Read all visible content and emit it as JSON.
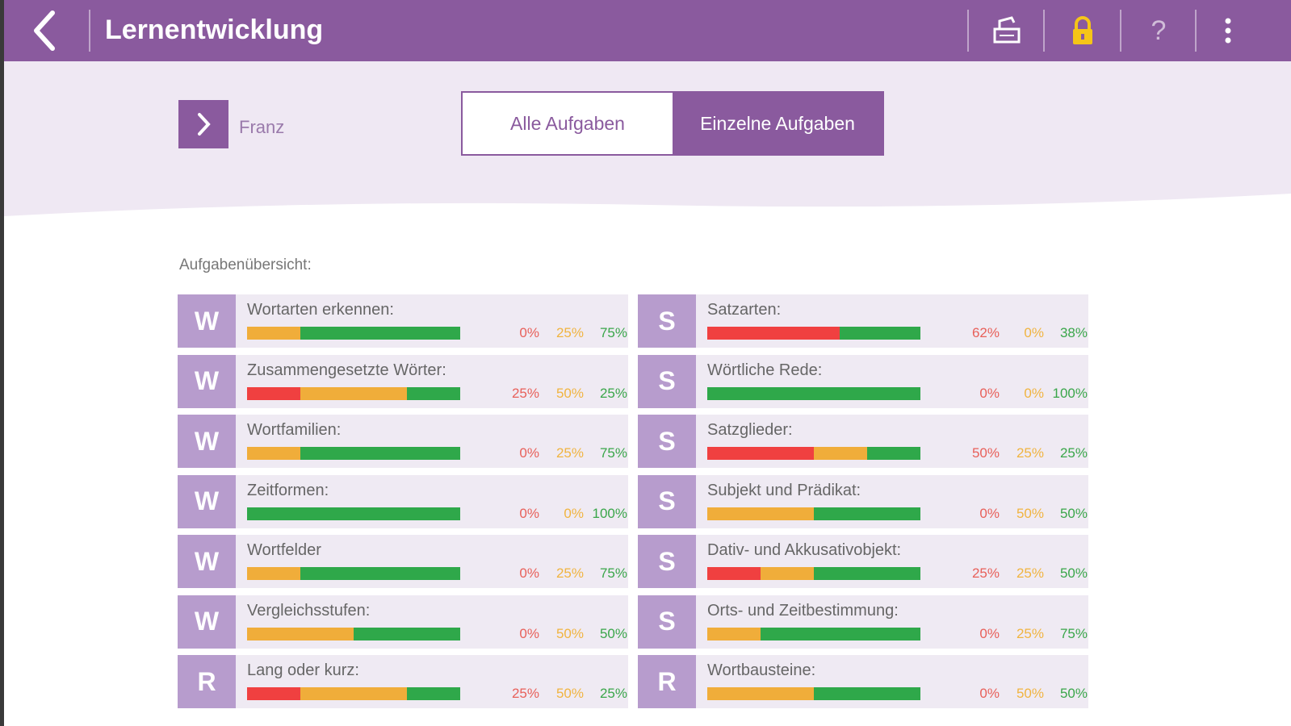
{
  "header": {
    "title": "Lernentwicklung",
    "icons": [
      "back-icon",
      "print-icon",
      "lock-icon",
      "help-icon",
      "more-icon"
    ]
  },
  "student": {
    "name": "Franz"
  },
  "segments": {
    "all": "Alle Aufgaben",
    "single": "Einzelne Aufgaben",
    "selected": "single"
  },
  "overview_label": "Aufgabenübersicht:",
  "colors": {
    "purple": "#8a5a9e",
    "red": "#f04040",
    "orange": "#f0ad3a",
    "green": "#2fa84a",
    "lock": "#f5c518"
  },
  "left": [
    {
      "badge": "W",
      "name": "Wortarten erkennen:",
      "red": 0,
      "orange": 25,
      "green": 75,
      "r": "0%",
      "o": "25%",
      "g": "75%"
    },
    {
      "badge": "W",
      "name": "Zusammengesetzte Wörter:",
      "red": 25,
      "orange": 50,
      "green": 25,
      "r": "25%",
      "o": "50%",
      "g": "25%"
    },
    {
      "badge": "W",
      "name": "Wortfamilien:",
      "red": 0,
      "orange": 25,
      "green": 75,
      "r": "0%",
      "o": "25%",
      "g": "75%"
    },
    {
      "badge": "W",
      "name": "Zeitformen:",
      "red": 0,
      "orange": 0,
      "green": 100,
      "r": "0%",
      "o": "0%",
      "g": "100%"
    },
    {
      "badge": "W",
      "name": "Wortfelder",
      "red": 0,
      "orange": 25,
      "green": 75,
      "r": "0%",
      "o": "25%",
      "g": "75%"
    },
    {
      "badge": "W",
      "name": "Vergleichsstufen:",
      "red": 0,
      "orange": 50,
      "green": 50,
      "r": "0%",
      "o": "50%",
      "g": "50%"
    },
    {
      "badge": "R",
      "name": "Lang oder kurz:",
      "red": 25,
      "orange": 50,
      "green": 25,
      "r": "25%",
      "o": "50%",
      "g": "25%"
    }
  ],
  "right": [
    {
      "badge": "S",
      "name": "Satzarten:",
      "red": 62,
      "orange": 0,
      "green": 38,
      "r": "62%",
      "o": "0%",
      "g": "38%"
    },
    {
      "badge": "S",
      "name": "Wörtliche Rede:",
      "red": 0,
      "orange": 0,
      "green": 100,
      "r": "0%",
      "o": "0%",
      "g": "100%"
    },
    {
      "badge": "S",
      "name": "Satzglieder:",
      "red": 50,
      "orange": 25,
      "green": 25,
      "r": "50%",
      "o": "25%",
      "g": "25%"
    },
    {
      "badge": "S",
      "name": "Subjekt und Prädikat:",
      "red": 0,
      "orange": 50,
      "green": 50,
      "r": "0%",
      "o": "50%",
      "g": "50%"
    },
    {
      "badge": "S",
      "name": "Dativ- und Akkusativobjekt:",
      "red": 25,
      "orange": 25,
      "green": 50,
      "r": "25%",
      "o": "25%",
      "g": "50%"
    },
    {
      "badge": "S",
      "name": "Orts- und Zeitbestimmung:",
      "red": 0,
      "orange": 25,
      "green": 75,
      "r": "0%",
      "o": "25%",
      "g": "75%"
    },
    {
      "badge": "R",
      "name": "Wortbausteine:",
      "red": 0,
      "orange": 50,
      "green": 50,
      "r": "0%",
      "o": "50%",
      "g": "50%"
    }
  ]
}
